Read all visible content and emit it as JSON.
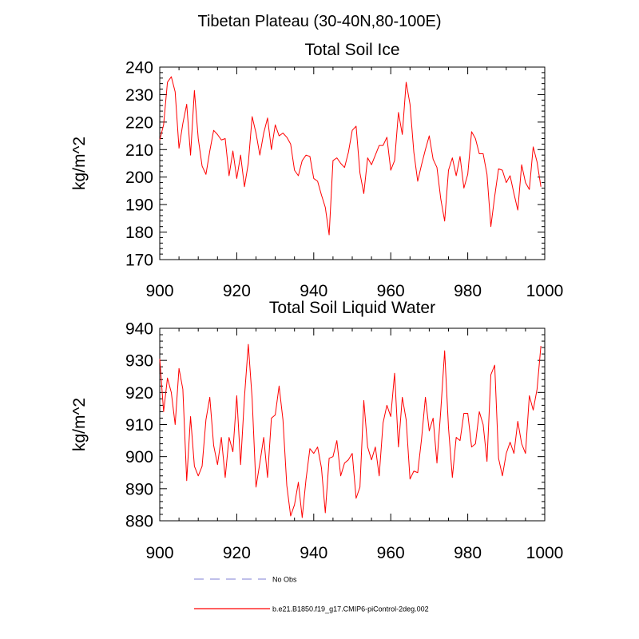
{
  "page_title": "Tibetan Plateau (30-40N,80-100E)",
  "colors": {
    "model": "#ff0000",
    "obs": "#9999dd",
    "axis": "#000000"
  },
  "legend": {
    "entries": [
      {
        "label": "No Obs",
        "style": "dashed",
        "color": "#9999dd"
      },
      {
        "label": "b.e21.B1850.f19_g17.CMIP6-piControl-2deg.002",
        "style": "solid",
        "color": "#ff0000"
      }
    ]
  },
  "chart_data": [
    {
      "type": "line",
      "title": "Total Soil Ice",
      "ylabel": "kg/m^2",
      "xlim": [
        900,
        1000
      ],
      "ylim": [
        170,
        240
      ],
      "x_ticks": [
        900,
        920,
        940,
        960,
        980,
        1000
      ],
      "y_ticks": [
        170,
        180,
        190,
        200,
        210,
        220,
        230,
        240
      ],
      "x_start": 900,
      "series": [
        {
          "color": "#ff0000",
          "values": [
            213.5,
            219,
            234.5,
            236.5,
            231,
            210.5,
            219.5,
            226.5,
            208,
            231.5,
            214,
            204,
            201,
            209.5,
            217,
            215.5,
            213.5,
            214,
            200.5,
            209.5,
            199.5,
            208,
            196.5,
            205,
            222,
            216,
            208,
            216,
            221.5,
            210,
            219,
            215,
            216,
            214.5,
            212,
            202.5,
            200.5,
            206,
            208,
            207.5,
            199.5,
            198.5,
            193.5,
            189,
            179,
            206,
            207,
            205,
            203.5,
            209,
            217,
            218.5,
            201.5,
            194,
            207,
            204.5,
            208,
            211.5,
            211.5,
            214.5,
            202.5,
            206,
            223.5,
            215.5,
            234.5,
            226.5,
            209,
            198.5,
            204.5,
            210,
            215,
            206.5,
            203.5,
            192,
            184,
            202.5,
            207,
            200.5,
            207.5,
            196,
            201,
            216.5,
            214,
            208.5,
            208.5,
            201,
            182,
            193,
            203,
            202.5,
            198,
            200.5,
            194,
            188,
            204.5,
            198,
            195.5,
            211,
            205.5,
            196.5
          ]
        }
      ]
    },
    {
      "type": "line",
      "title": "Total Soil Liquid Water",
      "ylabel": "kg/m^2",
      "xlim": [
        900,
        1000
      ],
      "ylim": [
        880,
        940
      ],
      "x_ticks": [
        900,
        920,
        940,
        960,
        980,
        1000
      ],
      "y_ticks": [
        880,
        890,
        900,
        910,
        920,
        930,
        940
      ],
      "x_start": 900,
      "series": [
        {
          "color": "#ff0000",
          "values": [
            930.5,
            914,
            924.5,
            920,
            910,
            927.5,
            921,
            892.5,
            912.5,
            897,
            894,
            897,
            911.5,
            918.5,
            903.5,
            897.5,
            906,
            893.5,
            906,
            901.5,
            919,
            897.5,
            918.5,
            935,
            918,
            890.5,
            898,
            906,
            893.5,
            912,
            913,
            922,
            911.5,
            891,
            881.5,
            885,
            892,
            881,
            893,
            902.5,
            901,
            903,
            896.5,
            882.5,
            899.5,
            900,
            905,
            894,
            898,
            899,
            901,
            887,
            890.5,
            917.5,
            903,
            899,
            903,
            894,
            910.5,
            916,
            912.5,
            926,
            903,
            918.5,
            911.5,
            893,
            895.5,
            895,
            905.5,
            918.5,
            908,
            912,
            898,
            914.5,
            933,
            909,
            893.5,
            906,
            905,
            913.5,
            913.5,
            903,
            904,
            914,
            910,
            898.5,
            925.5,
            928.5,
            899.5,
            894,
            901,
            904.5,
            901,
            911,
            904,
            901,
            919,
            914.5,
            921,
            934.5
          ]
        }
      ]
    }
  ]
}
